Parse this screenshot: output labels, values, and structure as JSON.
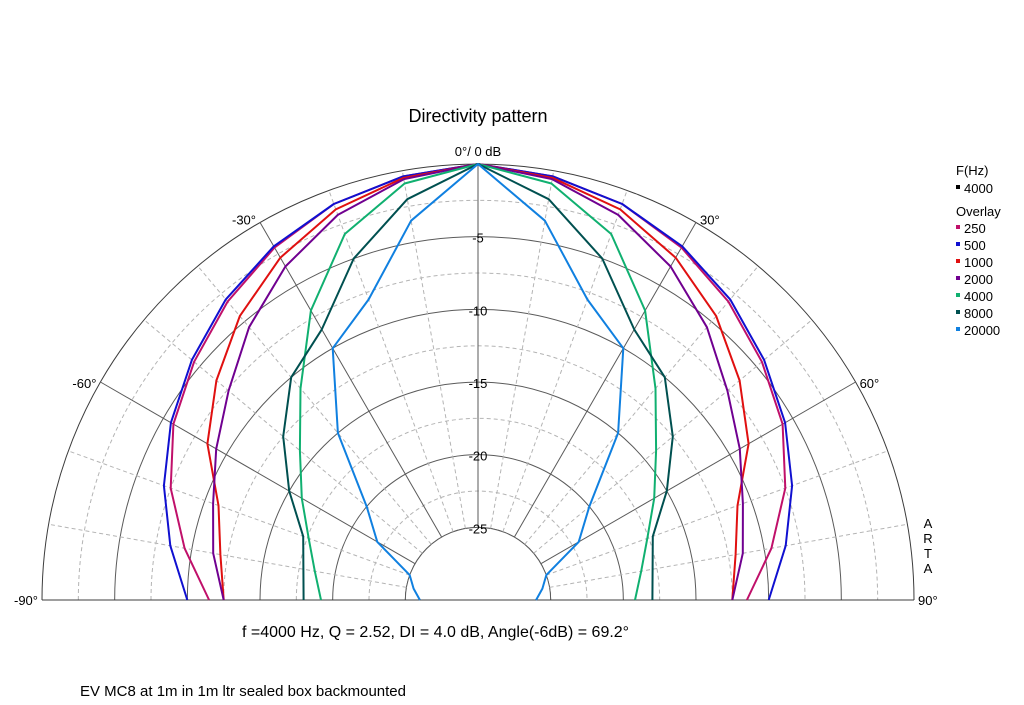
{
  "chart_data": {
    "type": "polar",
    "title": "Directivity pattern",
    "top_label": "0°/ 0 dB",
    "radial_range_db": [
      -30,
      0
    ],
    "radial_ticks": [
      {
        "value": -5,
        "label": "-5"
      },
      {
        "value": -10,
        "label": "-10"
      },
      {
        "value": -15,
        "label": "-15"
      },
      {
        "value": -20,
        "label": "-20"
      },
      {
        "value": -25,
        "label": "-25"
      }
    ],
    "angle_range_deg": [
      -90,
      90
    ],
    "angle_labels": [
      {
        "angle": -90,
        "label": "-90°"
      },
      {
        "angle": -60,
        "label": "-60°"
      },
      {
        "angle": -30,
        "label": "-30°"
      },
      {
        "angle": 30,
        "label": "30°"
      },
      {
        "angle": 60,
        "label": "60°"
      },
      {
        "angle": 90,
        "label": "90°"
      }
    ],
    "grid": true,
    "legend": {
      "header": "F(Hz)",
      "current": {
        "label": "4000",
        "color": "#000000"
      },
      "overlay_header": "Overlay",
      "position": "right"
    },
    "angles": [
      0,
      10,
      20,
      30,
      40,
      50,
      60,
      70,
      80,
      90
    ],
    "series": [
      {
        "name": "250",
        "color": "#c0106a",
        "values": [
          0,
          -0.4,
          -1.0,
          -2.0,
          -3.2,
          -4.5,
          -5.8,
          -7.5,
          -9.5,
          -11.5
        ]
      },
      {
        "name": "500",
        "color": "#1010d0",
        "values": [
          0,
          -0.4,
          -1.0,
          -1.9,
          -3.0,
          -4.3,
          -5.6,
          -7.0,
          -8.5,
          -10.0
        ]
      },
      {
        "name": "1000",
        "color": "#e01010",
        "values": [
          0,
          -0.5,
          -1.4,
          -2.8,
          -4.5,
          -6.5,
          -8.5,
          -11.0,
          -12.0,
          -12.5
        ]
      },
      {
        "name": "2000",
        "color": "#700090",
        "values": [
          0,
          -0.6,
          -1.8,
          -3.5,
          -5.5,
          -7.6,
          -9.2,
          -10.6,
          -11.5,
          -12.5
        ]
      },
      {
        "name": "4000",
        "color": "#10b070",
        "values": [
          0,
          -0.9,
          -3.2,
          -7.0,
          -11.0,
          -14.0,
          -16.0,
          -17.6,
          -18.6,
          -19.2
        ]
      },
      {
        "name": "8000",
        "color": "#005050",
        "values": [
          0,
          -2.0,
          -5.0,
          -8.5,
          -10.0,
          -12.5,
          -15.0,
          -17.2,
          -17.8,
          -18.0
        ]
      },
      {
        "name": "20000",
        "color": "#1080e0",
        "values": [
          0,
          -3.5,
          -8.0,
          -10.0,
          -15.0,
          -20.0,
          -22.0,
          -25.0,
          -25.5,
          -26.0
        ]
      }
    ]
  },
  "stats_line": "f =4000 Hz,  Q =  2.52,  DI =   4.0 dB,  Angle(-6dB) =  69.2°",
  "note": "EV MC8 at 1m in 1m ltr sealed box backmounted",
  "side_label": "ARTA"
}
